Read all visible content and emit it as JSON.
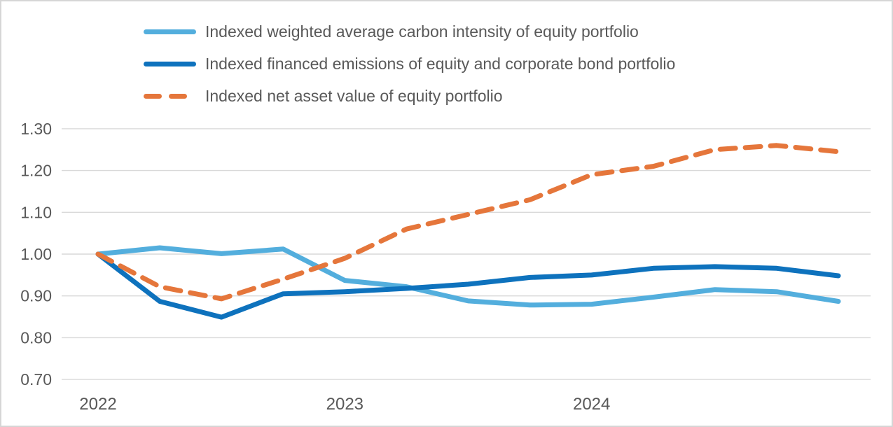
{
  "window": {
    "background": "#ffffff",
    "border_color": "#d6d6d6"
  },
  "colors": {
    "text": "#595959",
    "grid": "#d9d9d9"
  },
  "chart_data": {
    "type": "line",
    "title": "",
    "grid": true,
    "legend_position": "top-left",
    "x_unit": "quarters",
    "n_points": 13,
    "x_axis": {
      "ticks": [
        {
          "label": "2022",
          "index": 0
        },
        {
          "label": "2023",
          "index": 4
        },
        {
          "label": "2024",
          "index": 8
        }
      ]
    },
    "y_axis": {
      "min": 0.7,
      "max": 1.3,
      "ticks": [
        {
          "label": "1.30",
          "value": 1.3
        },
        {
          "label": "1.20",
          "value": 1.2
        },
        {
          "label": "1.10",
          "value": 1.1
        },
        {
          "label": "1.00",
          "value": 1.0
        },
        {
          "label": "0.90",
          "value": 0.9
        },
        {
          "label": "0.80",
          "value": 0.8
        },
        {
          "label": "0.70",
          "value": 0.7
        }
      ]
    },
    "series": [
      {
        "name": "Indexed weighted average carbon intensity of equity portfolio",
        "color": "#53aedd",
        "line_style": "solid",
        "values": [
          1.0,
          1.015,
          1.001,
          1.012,
          0.937,
          0.922,
          0.888,
          0.878,
          0.88,
          0.897,
          0.915,
          0.91,
          0.887
        ]
      },
      {
        "name": "Indexed financed emissions of equity and corporate bond portfolio",
        "color": "#0e72bd",
        "line_style": "solid",
        "values": [
          1.0,
          0.887,
          0.849,
          0.905,
          0.91,
          0.918,
          0.928,
          0.944,
          0.95,
          0.966,
          0.97,
          0.966,
          0.948
        ]
      },
      {
        "name": "Indexed net asset value of equity portfolio",
        "color": "#e5763b",
        "line_style": "dashed",
        "values": [
          1.0,
          0.922,
          0.893,
          0.94,
          0.99,
          1.06,
          1.095,
          1.13,
          1.19,
          1.21,
          1.25,
          1.26,
          1.245
        ]
      }
    ]
  }
}
